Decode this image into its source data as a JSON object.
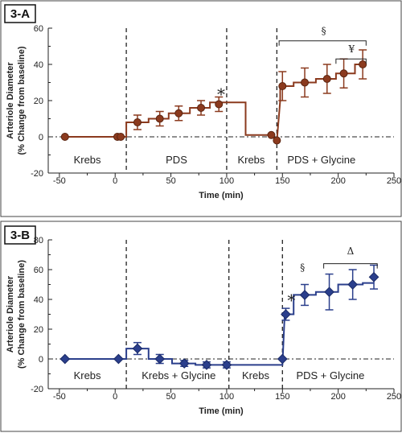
{
  "chart_data": [
    {
      "panel_label": "3-A",
      "type": "line",
      "color": "#8B3A1E",
      "xlabel": "Time (min)",
      "ylabel": [
        "Arteriole Diameter",
        "(% Change from baseline)"
      ],
      "xlim": [
        -60,
        250
      ],
      "ylim": [
        -20,
        60
      ],
      "xticks": [
        -50,
        0,
        50,
        100,
        150,
        200,
        250
      ],
      "yticks": [
        -20,
        0,
        20,
        40,
        60
      ],
      "dividers": [
        10,
        100,
        145
      ],
      "regions": [
        {
          "label": "Krebs",
          "x": -25
        },
        {
          "label": "PDS",
          "x": 55
        },
        {
          "label": "Krebs",
          "x": 122
        },
        {
          "label": "PDS + Glycine",
          "x": 185
        }
      ],
      "points": [
        {
          "x": -45,
          "y": 0,
          "err": 0
        },
        {
          "x": 2,
          "y": 0,
          "err": 0
        },
        {
          "x": 5,
          "y": 0,
          "err": 0
        },
        {
          "x": 20,
          "y": 8,
          "err": 4
        },
        {
          "x": 40,
          "y": 10,
          "err": 4
        },
        {
          "x": 57,
          "y": 13,
          "err": 4
        },
        {
          "x": 77,
          "y": 16,
          "err": 4
        },
        {
          "x": 93,
          "y": 18,
          "err": 4
        },
        {
          "x": 140,
          "y": 1,
          "err": 0
        },
        {
          "x": 145,
          "y": -2,
          "err": 0
        },
        {
          "x": 150,
          "y": 28,
          "err": 8
        },
        {
          "x": 170,
          "y": 30,
          "err": 8
        },
        {
          "x": 190,
          "y": 32,
          "err": 8
        },
        {
          "x": 205,
          "y": 35,
          "err": 8
        },
        {
          "x": 222,
          "y": 40,
          "err": 8
        }
      ],
      "step_line": [
        [
          -45,
          0
        ],
        [
          10,
          0
        ],
        [
          10,
          8
        ],
        [
          30,
          8
        ],
        [
          30,
          10
        ],
        [
          48,
          10
        ],
        [
          48,
          13
        ],
        [
          67,
          13
        ],
        [
          67,
          16
        ],
        [
          85,
          16
        ],
        [
          85,
          19
        ],
        [
          117,
          19
        ],
        [
          117,
          1
        ],
        [
          140,
          1
        ],
        [
          145,
          -2
        ],
        [
          148,
          20
        ],
        [
          148,
          28
        ],
        [
          160,
          28
        ],
        [
          160,
          30
        ],
        [
          180,
          30
        ],
        [
          180,
          32
        ],
        [
          198,
          32
        ],
        [
          198,
          35
        ],
        [
          215,
          35
        ],
        [
          215,
          40
        ],
        [
          222,
          40
        ]
      ],
      "annotations": [
        {
          "text": "*",
          "x": 95,
          "y": 24
        },
        {
          "text": "§",
          "x": 187,
          "y": 55,
          "bracket": [
            147,
            225,
            53
          ]
        },
        {
          "text": "¥",
          "x": 212,
          "y": 45,
          "bracket": [
            198,
            225,
            43
          ]
        }
      ]
    },
    {
      "panel_label": "3-B",
      "type": "line",
      "color": "#2B3F8C",
      "xlabel": "Time (min)",
      "ylabel": [
        "Arteriole Diameter",
        "(% Change from baseline)"
      ],
      "xlim": [
        -60,
        250
      ],
      "ylim": [
        -20,
        80
      ],
      "xticks": [
        -50,
        0,
        50,
        100,
        150,
        200,
        250
      ],
      "yticks": [
        -20,
        0,
        20,
        40,
        60,
        80
      ],
      "dividers": [
        10,
        102,
        150
      ],
      "regions": [
        {
          "label": "Krebs",
          "x": -25
        },
        {
          "label": "Krebs + Glycine",
          "x": 57
        },
        {
          "label": "Krebs",
          "x": 126
        },
        {
          "label": "PDS + Glycine",
          "x": 193
        }
      ],
      "points": [
        {
          "x": -45,
          "y": 0,
          "err": 0
        },
        {
          "x": 3,
          "y": 0,
          "err": 0
        },
        {
          "x": 20,
          "y": 7,
          "err": 4
        },
        {
          "x": 40,
          "y": 0,
          "err": 3
        },
        {
          "x": 62,
          "y": -3,
          "err": 2
        },
        {
          "x": 82,
          "y": -4,
          "err": 2
        },
        {
          "x": 100,
          "y": -4,
          "err": 2
        },
        {
          "x": 150,
          "y": 0,
          "err": 0
        },
        {
          "x": 153,
          "y": 30,
          "err": 4
        },
        {
          "x": 170,
          "y": 43,
          "err": 7
        },
        {
          "x": 192,
          "y": 45,
          "err": 12
        },
        {
          "x": 213,
          "y": 50,
          "err": 10
        },
        {
          "x": 232,
          "y": 55,
          "err": 8
        }
      ],
      "step_line": [
        [
          -45,
          0
        ],
        [
          10,
          0
        ],
        [
          10,
          7
        ],
        [
          30,
          7
        ],
        [
          30,
          0
        ],
        [
          51,
          0
        ],
        [
          51,
          -3
        ],
        [
          72,
          -3
        ],
        [
          72,
          -4
        ],
        [
          102,
          -4
        ],
        [
          102,
          -4
        ],
        [
          150,
          -4
        ],
        [
          152,
          30
        ],
        [
          160,
          30
        ],
        [
          160,
          43
        ],
        [
          180,
          43
        ],
        [
          180,
          45
        ],
        [
          200,
          45
        ],
        [
          200,
          50
        ],
        [
          222,
          50
        ],
        [
          222,
          51
        ],
        [
          232,
          51
        ]
      ],
      "annotations": [
        {
          "text": "*",
          "x": 158,
          "y": 40
        },
        {
          "text": "§",
          "x": 168,
          "y": 57
        },
        {
          "text": "Δ",
          "x": 211,
          "y": 68,
          "bracket": [
            187,
            235,
            64
          ]
        }
      ]
    }
  ]
}
